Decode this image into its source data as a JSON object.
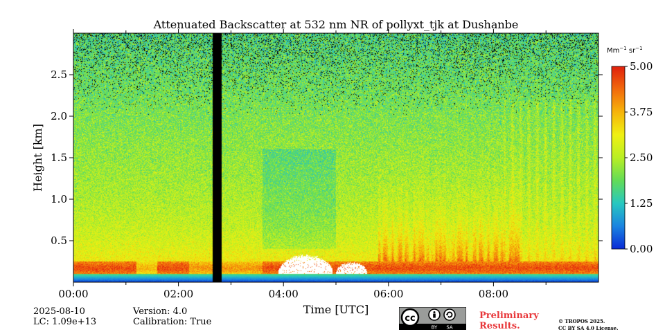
{
  "chart_data": {
    "type": "heatmap",
    "title": "Attenuated Backscatter at 532 nm NR of pollyxt_tjk at Dushanbe",
    "xlabel": "Time [UTC]",
    "ylabel": "Height [km]",
    "xlim": [
      0,
      10
    ],
    "ylim": [
      0,
      3.0
    ],
    "x_ticks": [
      0,
      2,
      4,
      6,
      8
    ],
    "x_tick_labels": [
      "00:00",
      "02:00",
      "04:00",
      "06:00",
      "08:00"
    ],
    "x_minor_ticks": [
      1,
      3,
      5,
      7,
      9
    ],
    "y_ticks": [
      0.5,
      1.0,
      1.5,
      2.0,
      2.5
    ],
    "y_tick_labels": [
      "0.5",
      "1.0",
      "1.5",
      "2.0",
      "2.5"
    ],
    "colorbar": {
      "label": "Mm−1 sr−1",
      "range": [
        0.0,
        5.0
      ],
      "ticks": [
        0.0,
        1.25,
        2.5,
        3.75,
        5.0
      ],
      "tick_labels": [
        "0.00",
        "1.25",
        "2.50",
        "3.75",
        "5.00"
      ],
      "colormap": [
        "#0a2ad6",
        "#1a84e0",
        "#27c8c0",
        "#63dc57",
        "#b9ef24",
        "#f0f012",
        "#f6b40a",
        "#f26a0c",
        "#e0200c"
      ]
    },
    "no_data_intervals": [
      [
        2.65,
        2.82
      ]
    ],
    "saturated_regions": [
      {
        "x_range": [
          3.9,
          4.95
        ],
        "height_max": 0.34
      },
      {
        "x_range": [
          5.0,
          5.6
        ],
        "height_max": 0.25
      }
    ]
  },
  "meta": {
    "date": "2025-08-10",
    "lc": "LC: 1.09e+13",
    "version": "Version: 4.0",
    "calibration": "Calibration: True"
  },
  "footer": {
    "cc_text_by": "BY",
    "cc_text_sa": "SA",
    "preliminary_line1": "Preliminary",
    "preliminary_line2": "Results.",
    "copyright_line1": "© TROPOS 2025.",
    "copyright_line2": "CC BY SA 4.0 License."
  }
}
